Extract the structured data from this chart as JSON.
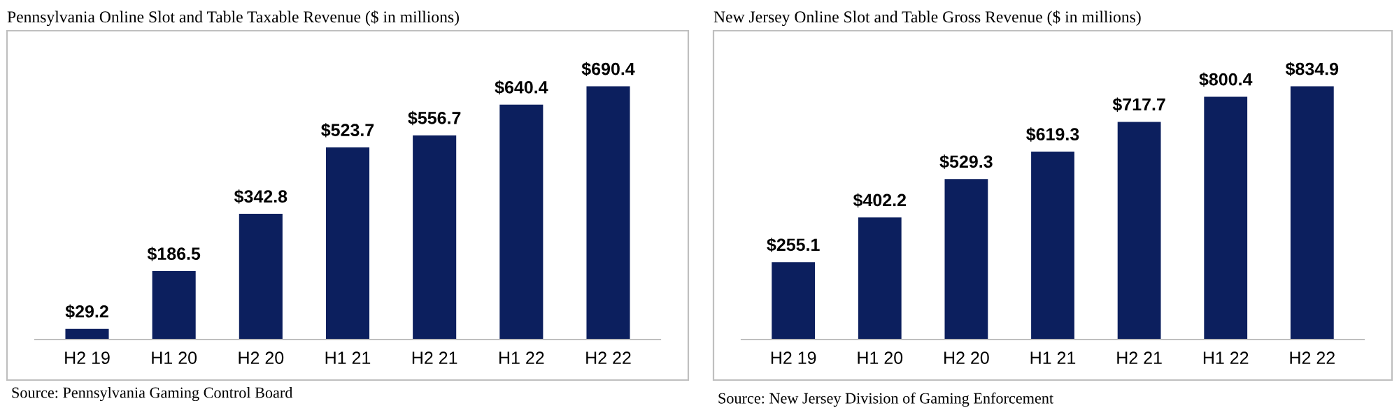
{
  "chart_data": [
    {
      "type": "bar",
      "title": "Pennsylvania Online Slot and Table Taxable Revenue ($ in millions)",
      "categories": [
        "H2 19",
        "H1 20",
        "H2 20",
        "H1 21",
        "H2 21",
        "H1 22",
        "H2 22"
      ],
      "values": [
        29.2,
        186.5,
        342.8,
        523.7,
        556.7,
        640.4,
        690.4
      ],
      "color": "#0c1f5e",
      "value_labels": [
        "$29.2",
        "$186.5",
        "$342.8",
        "$523.7",
        "$556.7",
        "$640.4",
        "$690.4"
      ],
      "grid": false,
      "legend": false,
      "annotations": [
        "Source: Pennsylvania Gaming Control Board"
      ]
    },
    {
      "type": "bar",
      "title": "New Jersey Online Slot and Table Gross Revenue ($ in millions)",
      "categories": [
        "H2 19",
        "H1 20",
        "H2 20",
        "H1 21",
        "H2 21",
        "H1 22",
        "H2 22"
      ],
      "values": [
        255.1,
        402.2,
        529.3,
        619.3,
        717.7,
        800.4,
        834.9
      ],
      "color": "#0c1f5e",
      "value_labels": [
        "$255.1",
        "$402.2",
        "$529.3",
        "$619.3",
        "$717.7",
        "$800.4",
        "$834.9"
      ],
      "grid": false,
      "legend": false,
      "annotations": [
        "Source: New Jersey Division of Gaming Enforcement"
      ]
    }
  ]
}
